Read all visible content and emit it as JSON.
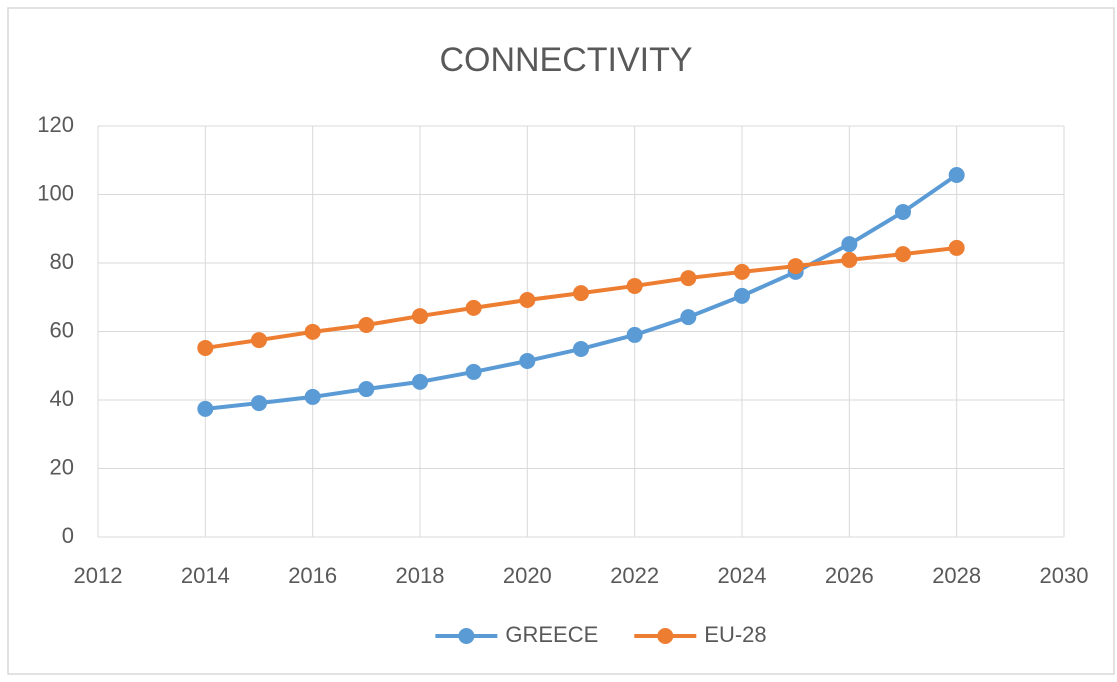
{
  "chart_data": {
    "type": "line",
    "title": "CONNECTIVITY",
    "x": [
      2014,
      2015,
      2016,
      2017,
      2018,
      2019,
      2020,
      2021,
      2022,
      2023,
      2024,
      2025,
      2026,
      2027,
      2028
    ],
    "series": [
      {
        "name": "GREECE",
        "color": "#5b9bd5",
        "values": [
          37.4,
          39.1,
          40.9,
          43.2,
          45.3,
          48.2,
          51.4,
          54.9,
          59.0,
          64.2,
          70.4,
          77.4,
          85.5,
          94.9,
          105.7
        ]
      },
      {
        "name": "EU-28",
        "color": "#ed7d31",
        "values": [
          55.2,
          57.5,
          59.9,
          61.9,
          64.5,
          66.9,
          69.2,
          71.2,
          73.3,
          75.6,
          77.4,
          79.1,
          80.9,
          82.6,
          84.4
        ]
      }
    ],
    "xlim": [
      2012,
      2030
    ],
    "xticks": [
      2012,
      2014,
      2016,
      2018,
      2020,
      2022,
      2024,
      2026,
      2028,
      2030
    ],
    "ylim": [
      0,
      120
    ],
    "yticks": [
      0,
      20,
      40,
      60,
      80,
      100,
      120
    ],
    "grid": true,
    "legend": "bottom"
  }
}
